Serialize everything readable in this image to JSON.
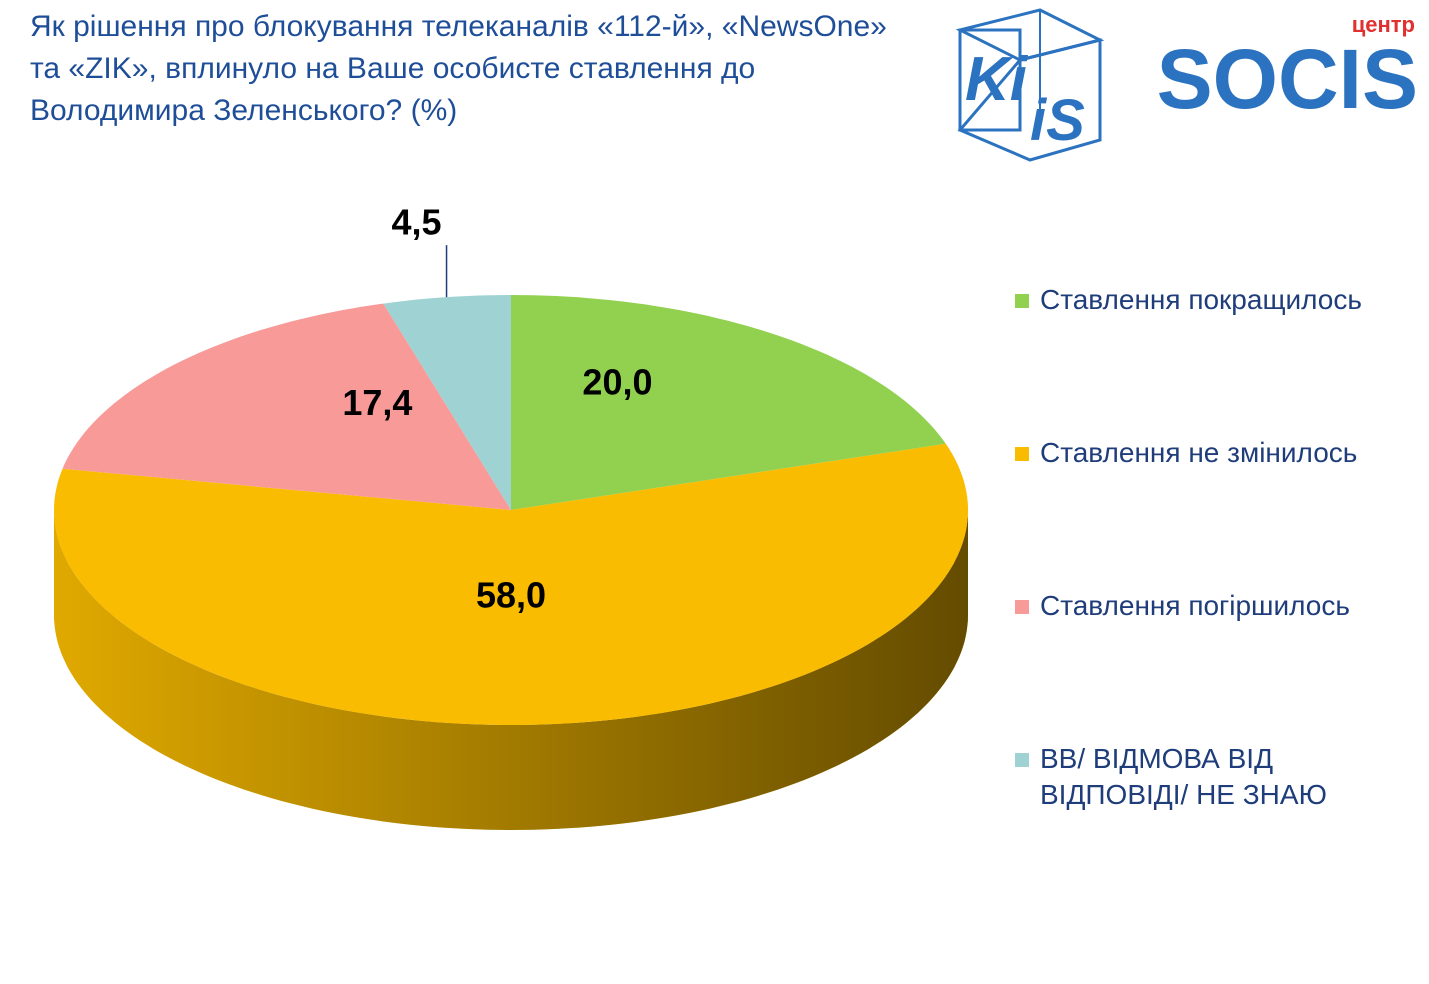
{
  "chart_data": {
    "type": "pie3d",
    "title": "Як рішення про блокування телеканалів «112-й», «NewsOne» та «ZIK», вплинуло на Ваше особисте ставлення до Володимира Зеленського? (%)",
    "categories": [
      "Ставлення покращилось",
      "Ставлення не змінилось",
      "Ставлення погіршилось",
      "ВВ/ ВІДМОВА ВІД ВІДПОВІДІ/ НЕ ЗНАЮ"
    ],
    "values": [
      20.0,
      58.0,
      17.4,
      4.5
    ],
    "value_labels": [
      "20,0",
      "58,0",
      "17,4",
      "4,5"
    ],
    "colors": [
      "#92d050",
      "#f9bc00",
      "#f89a98",
      "#9ed2d3"
    ],
    "legend": "right"
  },
  "logos": {
    "kiis": [
      "Ki",
      "iS"
    ],
    "socis_small": "центр",
    "socis": "SOCIS"
  }
}
